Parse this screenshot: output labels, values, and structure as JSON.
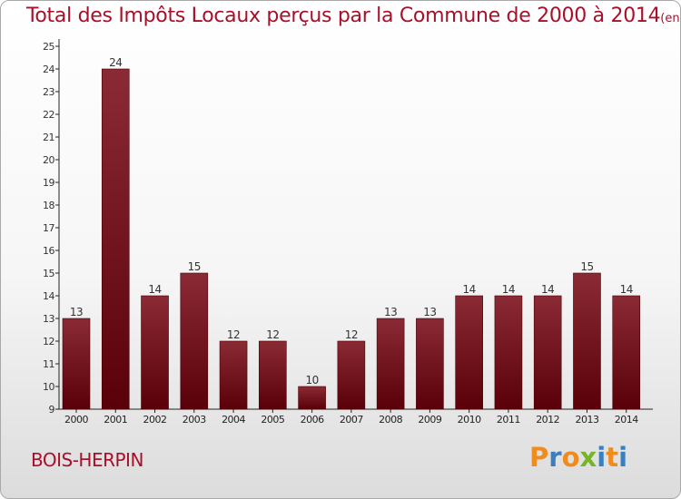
{
  "chart_data": {
    "type": "bar",
    "title": "Total des Impôts Locaux perçus par la Commune de 2000 à 2014",
    "unit": "(en milliers d'€)",
    "categories": [
      "2000",
      "2001",
      "2002",
      "2003",
      "2004",
      "2005",
      "2006",
      "2007",
      "2008",
      "2009",
      "2010",
      "2011",
      "2012",
      "2013",
      "2014"
    ],
    "values": [
      13,
      24,
      14,
      15,
      12,
      12,
      10,
      12,
      13,
      13,
      14,
      14,
      14,
      15,
      14
    ],
    "ylim": [
      9,
      25
    ],
    "yticks": [
      9,
      10,
      11,
      12,
      13,
      14,
      15,
      16,
      17,
      18,
      19,
      20,
      21,
      22,
      23,
      24,
      25
    ],
    "grid": false,
    "legend": "none",
    "bar_color_top": "#8a2a35",
    "bar_color_bottom": "#5a0008"
  },
  "commune_name": "BOIS-HERPIN",
  "logo": {
    "text": "Proxiti",
    "letters": [
      "P",
      "r",
      "o",
      "x",
      "i",
      "t",
      "i"
    ],
    "colors": [
      "#f08c1e",
      "#3a7fc0",
      "#f08c1e",
      "#78b42a",
      "#3a7fc0",
      "#f08c1e",
      "#3a7fc0"
    ]
  },
  "colors": {
    "title": "#a8102a",
    "commune": "#a8102a"
  }
}
